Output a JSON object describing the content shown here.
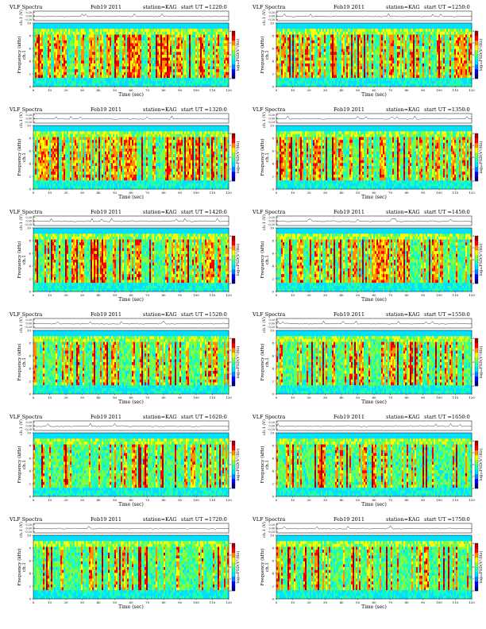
{
  "figure": {
    "header_left": "VLF Spectra",
    "date": "Feb19 2011",
    "station": "station=KAG",
    "start_prefix": "start  UT ="
  },
  "chart_data": {
    "type": "heatmap",
    "n_panels": 12,
    "start_times": [
      "1220:0",
      "1250:0",
      "1320:0",
      "1350:0",
      "1420:0",
      "1450:0",
      "1520:0",
      "1550:0",
      "1620:0",
      "1650:0",
      "1720:0",
      "1750:0"
    ],
    "amplitude_ylabel": "ch.1 (V)",
    "amplitude_ticks": [
      "0.20",
      "0.00",
      "-0.20"
    ],
    "amplitude_ylim": [
      -0.2,
      0.2
    ],
    "ylabel": "Frequency (kHz)",
    "yticks": [
      0,
      2,
      4,
      6,
      8,
      10
    ],
    "ylim": [
      0,
      10
    ],
    "xlabel": "Time (sec)",
    "xticks": [
      0,
      10,
      20,
      30,
      40,
      50,
      60,
      70,
      80,
      90,
      100,
      110,
      120
    ],
    "xlim": [
      0,
      120
    ],
    "colorbar_label": "log₁₀PSD(V²/Hz)",
    "colorbar_ticks": [
      "-4",
      "-5",
      "-6",
      "-7",
      "-8"
    ],
    "colors": [
      "#00007f",
      "#0000ff",
      "#0080ff",
      "#00e0ff",
      "#20ffb0",
      "#80ff40",
      "#ffff00",
      "#ff9000",
      "#ff0000",
      "#a00000"
    ]
  }
}
